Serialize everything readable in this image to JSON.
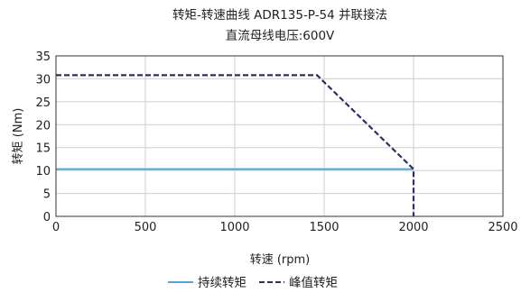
{
  "chart_data": {
    "type": "line",
    "title": "转矩-转速曲线 ADR135-P-54 并联接法",
    "subtitle": "直流母线电压:600V",
    "xlabel": "转速 (rpm)",
    "ylabel": "转矩 (Nm)",
    "xlim": [
      0,
      2500
    ],
    "ylim": [
      0,
      35
    ],
    "xticks": [
      0,
      500,
      1000,
      1500,
      2000,
      2500
    ],
    "yticks": [
      0,
      5,
      10,
      15,
      20,
      25,
      30,
      35
    ],
    "grid": true,
    "legend_position": "bottom",
    "series": [
      {
        "name": "持续转矩",
        "style": "solid",
        "color": "#4aa8d8",
        "points": [
          [
            0,
            10.3
          ],
          [
            2000,
            10.3
          ]
        ]
      },
      {
        "name": "峰值转矩",
        "style": "dashed",
        "color": "#2b2f63",
        "points": [
          [
            0,
            30.8
          ],
          [
            1460,
            30.8
          ],
          [
            2000,
            10.3
          ],
          [
            2000,
            0
          ]
        ]
      }
    ]
  }
}
